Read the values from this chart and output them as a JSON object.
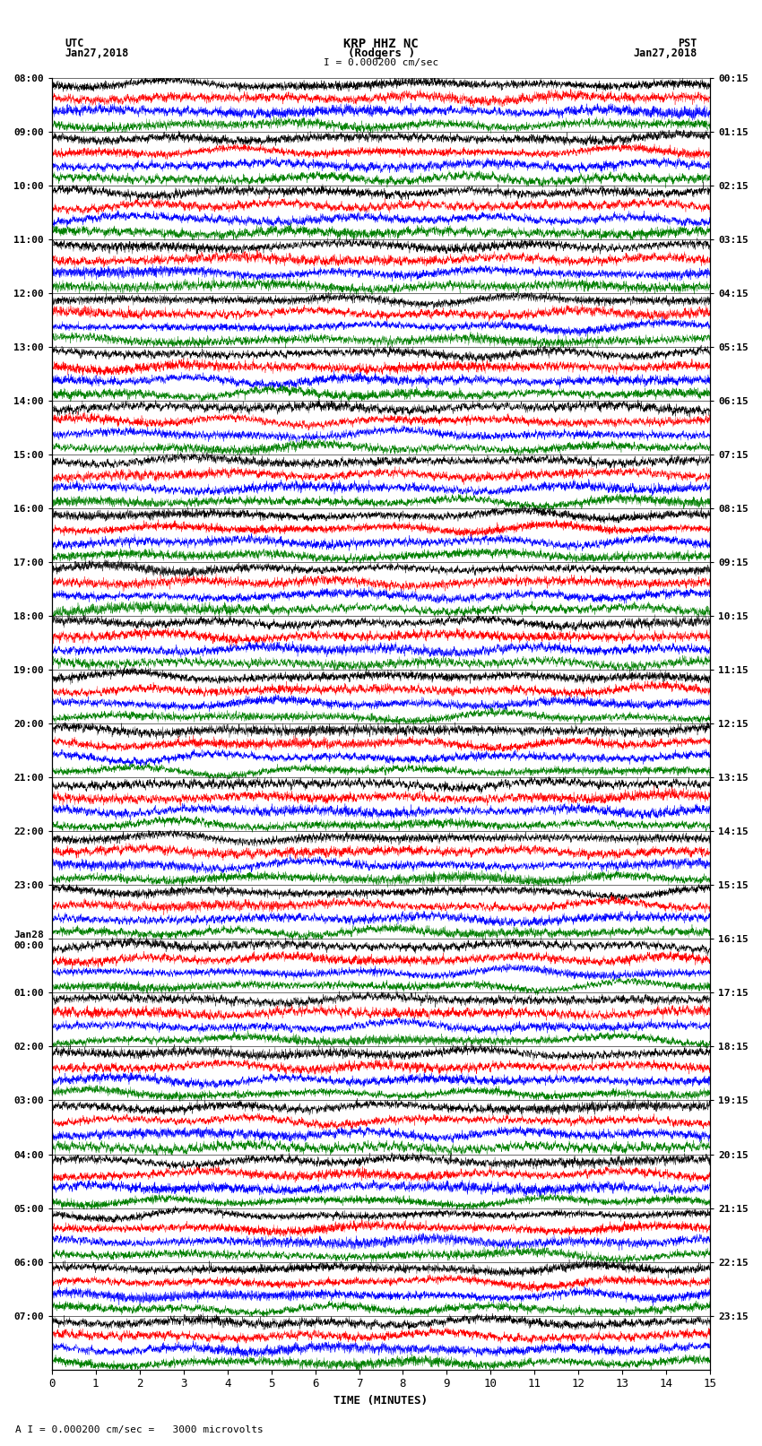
{
  "title_line1": "KRP HHZ NC",
  "title_line2": "(Rodgers )",
  "scale_label": "I = 0.000200 cm/sec",
  "utc_label": "UTC",
  "utc_date": "Jan27,2018",
  "pst_label": "PST",
  "pst_date": "Jan27,2018",
  "bottom_scale": "A I = 0.000200 cm/sec =   3000 microvolts",
  "xlabel": "TIME (MINUTES)",
  "left_times": [
    "08:00",
    "09:00",
    "10:00",
    "11:00",
    "12:00",
    "13:00",
    "14:00",
    "15:00",
    "16:00",
    "17:00",
    "18:00",
    "19:00",
    "20:00",
    "21:00",
    "22:00",
    "23:00",
    "Jan28\n00:00",
    "01:00",
    "02:00",
    "03:00",
    "04:00",
    "05:00",
    "06:00",
    "07:00"
  ],
  "right_times": [
    "00:15",
    "01:15",
    "02:15",
    "03:15",
    "04:15",
    "05:15",
    "06:15",
    "07:15",
    "08:15",
    "09:15",
    "10:15",
    "11:15",
    "12:15",
    "13:15",
    "14:15",
    "15:15",
    "16:15",
    "17:15",
    "18:15",
    "19:15",
    "20:15",
    "21:15",
    "22:15",
    "23:15"
  ],
  "n_rows": 24,
  "n_subtraces": 4,
  "n_points": 4500,
  "x_min": 0,
  "x_max": 15,
  "sub_colors": [
    "black",
    "red",
    "blue",
    "green"
  ],
  "bg_color": "white",
  "sub_amplitude": 0.45,
  "seed": 12345
}
